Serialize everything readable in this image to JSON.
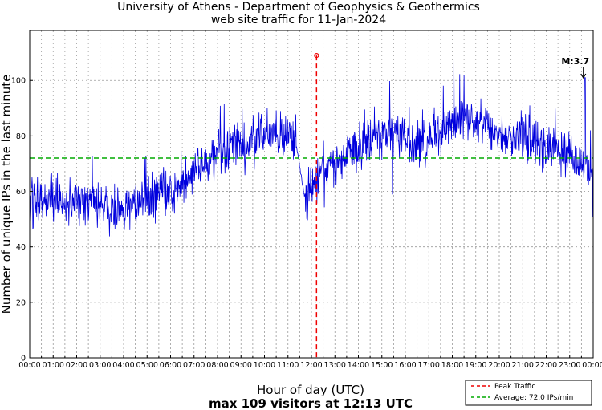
{
  "chart_data": {
    "type": "line",
    "title_line1": "University of Athens - Department of Geophysics & Geothermics",
    "title_line2": "web site traffic for 11-Jan-2024",
    "xlabel": "Hour of day (UTC)",
    "ylabel": "Number of unique IPs in the last minute",
    "footer": "max 109 visitors at 12:13 UTC",
    "x_ticks": [
      "00:00",
      "01:00",
      "02:00",
      "03:00",
      "04:00",
      "05:00",
      "06:00",
      "07:00",
      "08:00",
      "09:00",
      "10:00",
      "11:00",
      "12:00",
      "13:00",
      "14:00",
      "15:00",
      "16:00",
      "17:00",
      "18:00",
      "19:00",
      "20:00",
      "21:00",
      "22:00",
      "23:00",
      "00:00"
    ],
    "y_ticks": [
      0,
      20,
      40,
      60,
      80,
      100
    ],
    "xlim_hours": [
      0,
      24
    ],
    "ylim": [
      0,
      118
    ],
    "grid": true,
    "series": [
      {
        "name": "traffic",
        "color": "#0000dd",
        "hours": [
          0,
          0.5,
          1,
          1.5,
          2,
          2.5,
          3,
          3.5,
          4,
          4.5,
          5,
          5.5,
          6,
          6.5,
          7,
          7.5,
          8,
          8.5,
          9,
          9.5,
          10,
          10.5,
          11,
          11.3,
          11.7,
          12,
          12.2,
          12.5,
          13,
          13.5,
          14,
          14.5,
          15,
          15.5,
          16,
          16.5,
          17,
          17.5,
          18,
          18.5,
          19,
          19.5,
          20,
          20.5,
          21,
          21.5,
          22,
          22.5,
          23,
          23.5,
          24
        ],
        "trend": [
          58,
          57,
          57,
          56,
          55,
          55,
          54,
          54,
          54,
          55,
          57,
          59,
          60,
          62,
          67,
          70,
          74,
          77,
          77,
          79,
          80,
          81,
          81,
          80,
          58,
          62,
          66,
          70,
          71,
          73,
          77,
          79,
          79,
          80,
          79,
          77,
          78,
          81,
          84,
          86,
          86,
          83,
          81,
          79,
          79,
          77,
          76,
          74,
          73,
          69,
          68
        ],
        "noise": 5
      }
    ],
    "average": 72.0,
    "peak": {
      "value": 109,
      "time": "12:13",
      "hour": 12.2167
    },
    "local_max": {
      "label": "M:3.7",
      "hour": 23.65,
      "value": 101
    },
    "legend": {
      "position": "bottom-right",
      "entries": [
        {
          "label": "Peak Traffic",
          "color": "#ee0000",
          "style": "dashed"
        },
        {
          "label": "Average: 72.0 IPs/min",
          "color": "#00aa00",
          "style": "dashed"
        }
      ]
    }
  }
}
